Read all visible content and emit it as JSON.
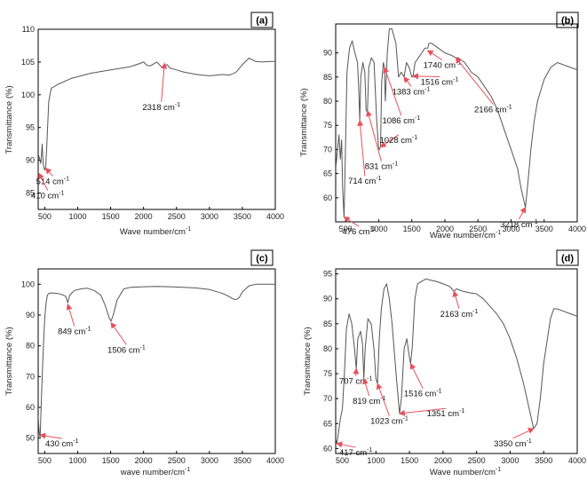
{
  "colors": {
    "trace": "#555555",
    "annotation_arrow": "#e8505b",
    "axis": "#000000",
    "frame": "#000000"
  },
  "chart_data": [
    {
      "panel": "(a)",
      "type": "line",
      "xlabel": "Wave number/cm",
      "xlabel_sup": "-1",
      "ylabel": "Transmittance (%)",
      "xlim": [
        400,
        4000
      ],
      "ylim": [
        82.5,
        110
      ],
      "x_ticks": [
        500,
        1000,
        1500,
        2000,
        2500,
        3000,
        3500,
        4000
      ],
      "y_ticks": [
        85,
        90,
        95,
        100,
        105,
        110
      ],
      "series": [
        {
          "x": [
            400,
            440,
            460,
            475,
            490,
            500,
            514,
            530,
            560,
            600,
            700,
            900,
            1200,
            1500,
            1800,
            1950,
            2000,
            2050,
            2100,
            2200,
            2280,
            2318,
            2360,
            2400,
            2500,
            2600,
            2700,
            2800,
            2900,
            3000,
            3100,
            3200,
            3300,
            3400,
            3500,
            3600,
            3700,
            3800,
            3900,
            4000
          ],
          "y": [
            91,
            89.5,
            92.5,
            89.5,
            88.8,
            88.5,
            89,
            92,
            99,
            101,
            101.6,
            102.5,
            103.3,
            103.8,
            104.3,
            104.8,
            105,
            104.5,
            104.4,
            105,
            104.2,
            104.5,
            104.6,
            104.1,
            103.8,
            103.5,
            103.3,
            103.1,
            103,
            102.9,
            103,
            103.1,
            103,
            103.4,
            104.6,
            105.6,
            105.1,
            105,
            105.1,
            105.1
          ]
        }
      ],
      "annotations": [
        {
          "label": "514 cm",
          "sup": "-1",
          "x": 514,
          "y": 88.8,
          "text_x": 620,
          "text_y": 87.2
        },
        {
          "label": "410 cm",
          "sup": "-1",
          "x": 410,
          "y": 88,
          "text_x": 545,
          "text_y": 85
        },
        {
          "label": "2318 cm",
          "sup": "-1",
          "x": 2318,
          "y": 104.8,
          "text_x": 2270,
          "text_y": 98.5
        }
      ]
    },
    {
      "panel": "(b)",
      "type": "line",
      "xlabel": "Wave number/cm",
      "xlabel_sup": "-1",
      "ylabel": "Transmittance (%)",
      "xlim": [
        350,
        4000
      ],
      "ylim": [
        55,
        96
      ],
      "x_ticks": [
        500,
        1000,
        1500,
        2000,
        2500,
        3000,
        3500,
        4000
      ],
      "y_ticks": [
        60,
        65,
        70,
        75,
        80,
        85,
        90
      ],
      "series": [
        {
          "x": [
            350,
            400,
            420,
            440,
            455,
            476,
            495,
            520,
            560,
            600,
            640,
            680,
            700,
            714,
            730,
            760,
            790,
            810,
            831,
            850,
            890,
            930,
            970,
            1000,
            1010,
            1028,
            1045,
            1070,
            1086,
            1100,
            1130,
            1160,
            1200,
            1260,
            1300,
            1340,
            1383,
            1420,
            1460,
            1500,
            1516,
            1550,
            1600,
            1650,
            1700,
            1740,
            1760,
            1800,
            1900,
            2000,
            2100,
            2166,
            2200,
            2300,
            2400,
            2500,
            2600,
            2700,
            2800,
            2900,
            3000,
            3100,
            3150,
            3200,
            3218,
            3260,
            3300,
            3350,
            3400,
            3500,
            3600,
            3700,
            3800,
            3900,
            4000
          ],
          "y": [
            66,
            73,
            68,
            72,
            62,
            56,
            68,
            86,
            91,
            92.5,
            90,
            88,
            82,
            76,
            85,
            88,
            86,
            78,
            78,
            87,
            89,
            88,
            76,
            70,
            70,
            70.5,
            84,
            88,
            87,
            80,
            90,
            95,
            95,
            92,
            85,
            86,
            85,
            88,
            87,
            85,
            85,
            88,
            89,
            90,
            91,
            91,
            92,
            92,
            91,
            90,
            89.5,
            89,
            89,
            88,
            86,
            85,
            83,
            81,
            78,
            74,
            70,
            66,
            62,
            59,
            58,
            64,
            70,
            76,
            80,
            84.5,
            87,
            88,
            87.5,
            87,
            86.5
          ]
        }
      ],
      "annotations": [
        {
          "label": "1740 cm",
          "sup": "-1",
          "x": 1740,
          "y": 90.5,
          "text_x": 1960,
          "text_y": 88
        },
        {
          "label": "1516 cm",
          "sup": "-1",
          "x": 1516,
          "y": 85.2,
          "text_x": 1920,
          "text_y": 84.5
        },
        {
          "label": "1383 cm",
          "sup": "-1",
          "x": 1383,
          "y": 85,
          "text_x": 1490,
          "text_y": 82.5
        },
        {
          "label": "2166 cm",
          "sup": "-1",
          "x": 2166,
          "y": 89,
          "text_x": 2730,
          "text_y": 78.8
        },
        {
          "label": "1086 cm",
          "sup": "-1",
          "x": 1086,
          "y": 87,
          "text_x": 1340,
          "text_y": 76.5
        },
        {
          "label": "1028 cm",
          "sup": "-1",
          "x": 1028,
          "y": 70.5,
          "text_x": 1300,
          "text_y": 72.5
        },
        {
          "label": "831 cm",
          "sup": "-1",
          "x": 831,
          "y": 78,
          "text_x": 1040,
          "text_y": 67
        },
        {
          "label": "714 cm",
          "sup": "-1",
          "x": 714,
          "y": 76,
          "text_x": 790,
          "text_y": 64
        },
        {
          "label": "476 cm",
          "sup": "-1",
          "x": 476,
          "y": 56,
          "text_x": 700,
          "text_y": 53.5
        },
        {
          "label": "3218 cm",
          "sup": "-1",
          "x": 3218,
          "y": 58,
          "text_x": 3120,
          "text_y": 55
        }
      ]
    },
    {
      "panel": "(c)",
      "type": "line",
      "xlabel": "wave number/cm",
      "xlabel_sup": "-1",
      "ylabel": "Transmittance (%)",
      "xlim": [
        400,
        4000
      ],
      "ylim": [
        45,
        105
      ],
      "x_ticks": [
        500,
        1000,
        1500,
        2000,
        2500,
        3000,
        3500,
        4000
      ],
      "y_ticks": [
        50,
        60,
        70,
        80,
        90,
        100
      ],
      "series": [
        {
          "x": [
            400,
            415,
            430,
            445,
            460,
            480,
            500,
            520,
            540,
            560,
            600,
            700,
            780,
            820,
            849,
            880,
            950,
            1050,
            1150,
            1250,
            1350,
            1420,
            1480,
            1506,
            1540,
            1600,
            1700,
            1800,
            2000,
            2200,
            2400,
            2600,
            2800,
            3000,
            3200,
            3300,
            3350,
            3400,
            3450,
            3500,
            3600,
            3700,
            3800,
            4000
          ],
          "y": [
            57,
            52,
            50,
            60,
            70,
            80,
            89,
            94,
            96.5,
            97,
            97.2,
            97,
            96.5,
            96,
            94,
            96.5,
            98,
            98.5,
            98.7,
            98,
            96.5,
            93,
            89,
            88,
            90,
            95,
            98.5,
            99,
            99.2,
            99.3,
            99.2,
            99,
            98.8,
            98.3,
            97,
            96,
            95.3,
            95,
            95.6,
            97.5,
            99.5,
            100,
            100,
            100
          ]
        }
      ],
      "annotations": [
        {
          "label": "849 cm",
          "sup": "-1",
          "x": 849,
          "y": 93.5,
          "text_x": 950,
          "text_y": 85.5
        },
        {
          "label": "1506 cm",
          "sup": "-1",
          "x": 1506,
          "y": 87.5,
          "text_x": 1740,
          "text_y": 79.5
        },
        {
          "label": "430 cm",
          "sup": "-1",
          "x": 430,
          "y": 51,
          "text_x": 760,
          "text_y": 49
        }
      ]
    },
    {
      "panel": "(d)",
      "type": "line",
      "xlabel": "Wave number/cm",
      "xlabel_sup": "-1",
      "ylabel": "Transmittance (%)",
      "xlim": [
        400,
        4000
      ],
      "ylim": [
        59,
        96
      ],
      "x_ticks": [
        500,
        1000,
        1500,
        2000,
        2500,
        3000,
        3500,
        4000
      ],
      "y_ticks": [
        60,
        65,
        70,
        75,
        80,
        85,
        90,
        95
      ],
      "series": [
        {
          "x": [
            400,
            417,
            440,
            470,
            500,
            530,
            560,
            600,
            640,
            680,
            707,
            730,
            770,
            800,
            819,
            840,
            880,
            930,
            970,
            1000,
            1023,
            1050,
            1080,
            1120,
            1160,
            1200,
            1240,
            1300,
            1351,
            1380,
            1420,
            1460,
            1490,
            1516,
            1540,
            1580,
            1620,
            1680,
            1750,
            1800,
            1900,
            2000,
            2100,
            2163,
            2200,
            2300,
            2400,
            2500,
            2600,
            2700,
            2800,
            2900,
            3000,
            3100,
            3200,
            3300,
            3350,
            3400,
            3450,
            3500,
            3600,
            3650,
            3700,
            3800,
            3900,
            4000
          ],
          "y": [
            62,
            61,
            63,
            66,
            68,
            75,
            84,
            87,
            85,
            80,
            76,
            82,
            83.5,
            81,
            74,
            80,
            86,
            85,
            80,
            74,
            73,
            82,
            88,
            92,
            93,
            90,
            85,
            75,
            67,
            70,
            80,
            82,
            79,
            77,
            80,
            90,
            93,
            93.5,
            94,
            93.8,
            93.5,
            93,
            92.5,
            91.5,
            92,
            91.5,
            91.2,
            91,
            90,
            88.5,
            87,
            85,
            82,
            78,
            73,
            67,
            64,
            65,
            70,
            77,
            86,
            88,
            88,
            87.5,
            87,
            86.5
          ]
        }
      ],
      "annotations": [
        {
          "label": "2163 cm",
          "sup": "-1",
          "x": 2163,
          "y": 91.5,
          "text_x": 2240,
          "text_y": 87.5
        },
        {
          "label": "707 cm",
          "sup": "-1",
          "x": 707,
          "y": 76,
          "text_x": 700,
          "text_y": 74
        },
        {
          "label": "819 cm",
          "sup": "-1",
          "x": 819,
          "y": 74,
          "text_x": 900,
          "text_y": 70
        },
        {
          "label": "1516 cm",
          "sup": "-1",
          "x": 1516,
          "y": 77,
          "text_x": 1700,
          "text_y": 71.5
        },
        {
          "label": "1023 cm",
          "sup": "-1",
          "x": 1023,
          "y": 73,
          "text_x": 1200,
          "text_y": 66
        },
        {
          "label": "1351 cm",
          "sup": "-1",
          "x": 1351,
          "y": 67,
          "text_x": 2040,
          "text_y": 67.5
        },
        {
          "label": "417 cm",
          "sup": "-1",
          "x": 417,
          "y": 61,
          "text_x": 700,
          "text_y": 59.7
        },
        {
          "label": "3350 cm",
          "sup": "-1",
          "x": 3350,
          "y": 64,
          "text_x": 3040,
          "text_y": 61.5
        }
      ]
    }
  ]
}
